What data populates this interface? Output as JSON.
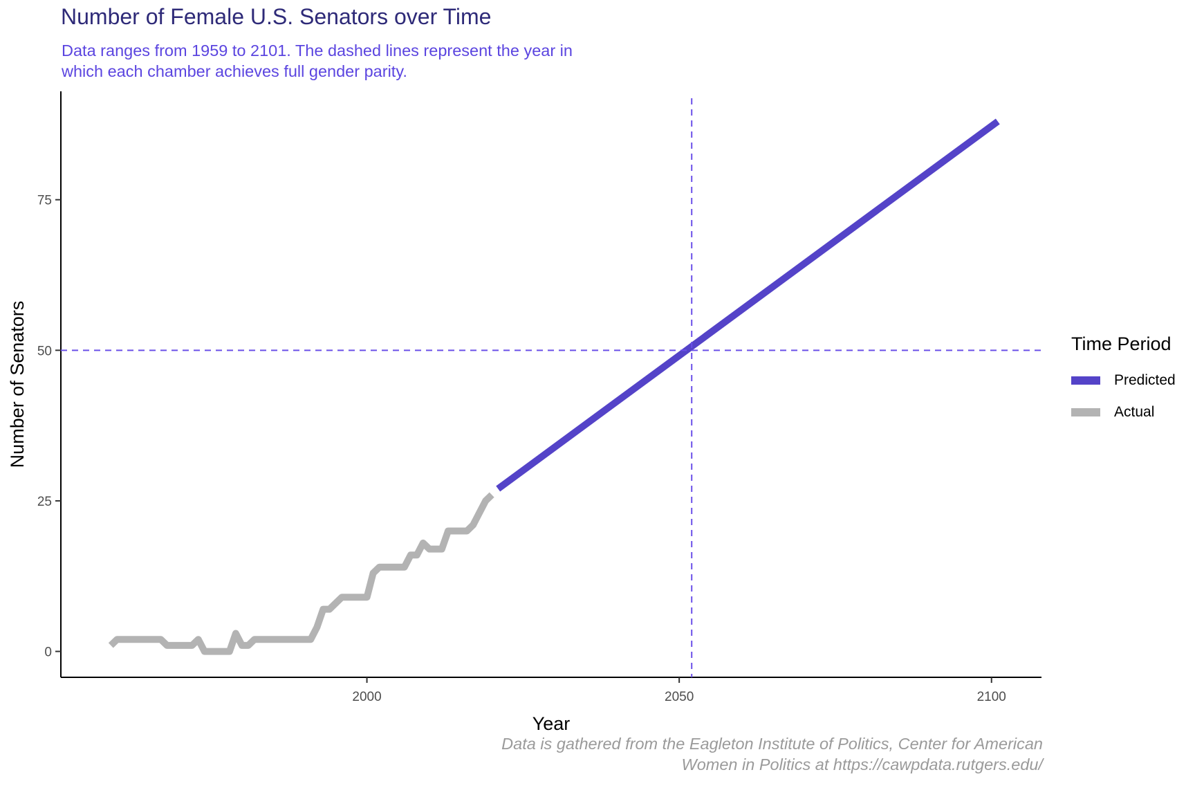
{
  "title": "Number of Female U.S. Senators over Time",
  "subtitle": "Data ranges from 1959 to 2101. The dashed lines represent the year in which each chamber achieves full gender parity.",
  "caption": "Data is gathered from the Eagleton Institute of Politics, Center for American Women in Politics at https://cawpdata.rutgers.edu/",
  "colors": {
    "predicted": "#5443c8",
    "actual": "#b3b3b3",
    "reference": "#6a4fe8",
    "title": "#2e2a78",
    "subtitle": "#5b45e0",
    "caption": "#9a9a9a"
  },
  "chart_data": {
    "type": "line",
    "title": "Number of Female U.S. Senators over Time",
    "xlabel": "Year",
    "ylabel": "Number of Senators",
    "xlim": [
      1951,
      2108
    ],
    "ylim": [
      -4.3,
      93
    ],
    "x_ticks": [
      2000,
      2050,
      2100
    ],
    "y_ticks": [
      0,
      25,
      50,
      75
    ],
    "grid": false,
    "legend": {
      "title": "Time Period",
      "position": "right"
    },
    "series": [
      {
        "name": "Actual",
        "x": [
          1959,
          1960,
          1961,
          1962,
          1963,
          1964,
          1965,
          1966,
          1967,
          1968,
          1969,
          1970,
          1971,
          1972,
          1973,
          1974,
          1975,
          1976,
          1977,
          1978,
          1979,
          1980,
          1981,
          1982,
          1983,
          1984,
          1985,
          1986,
          1987,
          1988,
          1989,
          1990,
          1991,
          1992,
          1993,
          1994,
          1995,
          1996,
          1997,
          1998,
          1999,
          2000,
          2001,
          2002,
          2003,
          2004,
          2005,
          2006,
          2007,
          2008,
          2009,
          2010,
          2011,
          2012,
          2013,
          2014,
          2015,
          2016,
          2017,
          2018,
          2019,
          2020
        ],
        "values": [
          1,
          2,
          2,
          2,
          2,
          2,
          2,
          2,
          2,
          1,
          1,
          1,
          1,
          1,
          2,
          0,
          0,
          0,
          0,
          0,
          3,
          1,
          1,
          2,
          2,
          2,
          2,
          2,
          2,
          2,
          2,
          2,
          2,
          4,
          7,
          7,
          8,
          9,
          9,
          9,
          9,
          9,
          13,
          14,
          14,
          14,
          14,
          14,
          16,
          16,
          18,
          17,
          17,
          17,
          20,
          20,
          20,
          20,
          21,
          23,
          25,
          26
        ]
      },
      {
        "name": "Predicted",
        "x": [
          2021,
          2101
        ],
        "values": [
          27,
          88
        ]
      }
    ],
    "reference_lines": {
      "x": 2052,
      "y": 50
    }
  }
}
